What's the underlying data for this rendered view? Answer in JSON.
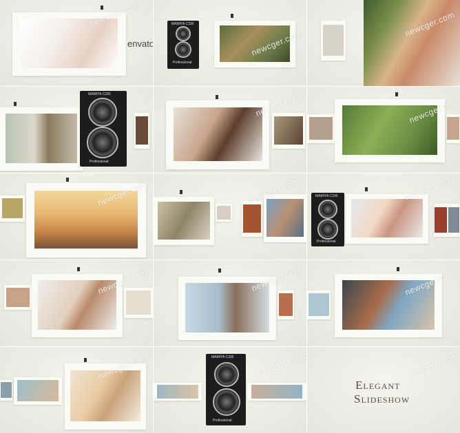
{
  "watermark": "newcger.com",
  "brand": "envato",
  "camera": {
    "model": "MAMIYA C330",
    "badge": "Professional"
  },
  "title": {
    "line1": "Elegant",
    "line2": "Slideshow"
  },
  "colors": {
    "background": "#ecece4",
    "frame": "#fbfbf6",
    "title": "#5a4a36"
  },
  "grid": {
    "rows": 5,
    "cols": 3,
    "kind": "video-frame contact sheet"
  }
}
